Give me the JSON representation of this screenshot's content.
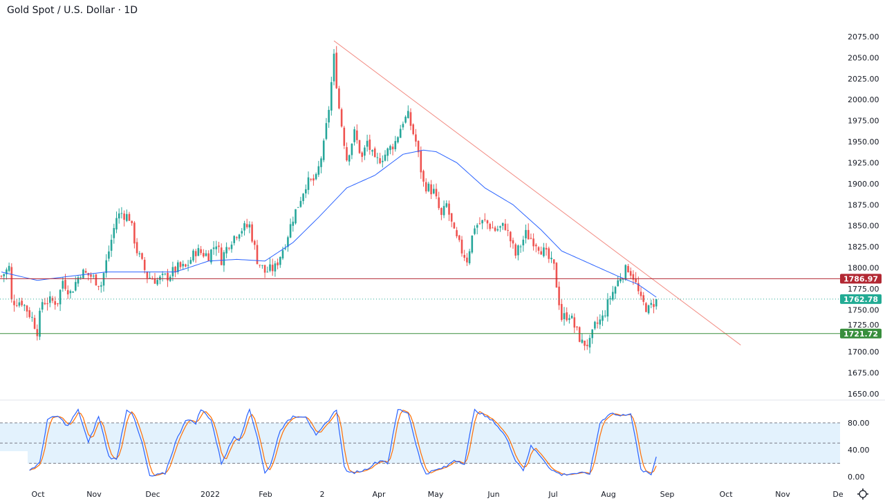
{
  "title": "Gold Spot / U.S. Dollar · 1D",
  "colors": {
    "up": "#26a69a",
    "down": "#ef5350",
    "ma": "#2962ff",
    "trend": "#f28b82",
    "resistance": "#b22833",
    "support": "#388e3c",
    "last": "#22ab94",
    "stochK": "#2962ff",
    "stochD": "#ff6d00",
    "band": "#e3f2fd"
  },
  "chart_data": [
    {
      "type": "candlestick",
      "title": "Gold Spot / U.S. Dollar · 1D",
      "ylim": [
        1640,
        2085
      ],
      "y_ticks": [
        "2075.00",
        "2050.00",
        "2025.00",
        "2000.00",
        "1975.00",
        "1950.00",
        "1925.00",
        "1900.00",
        "1875.00",
        "1850.00",
        "1825.00",
        "1800.00",
        "1775.00",
        "1750.00",
        "1725.00",
        "1700.00",
        "1675.00",
        "1650.00"
      ],
      "x_ticks": [
        "Oct",
        "Nov",
        "Dec",
        "2022",
        "Feb",
        "2",
        "Apr",
        "May",
        "Jun",
        "Jul",
        "Aug",
        "Sep",
        "Oct",
        "Nov",
        "De"
      ],
      "close_path_bar_price": [
        [
          0,
          1790
        ],
        [
          3,
          1800
        ],
        [
          4,
          1760
        ],
        [
          8,
          1760
        ],
        [
          12,
          1740
        ],
        [
          14,
          1725
        ],
        [
          16,
          1760
        ],
        [
          22,
          1760
        ],
        [
          24,
          1785
        ],
        [
          27,
          1770
        ],
        [
          31,
          1795
        ],
        [
          35,
          1790
        ],
        [
          39,
          1780
        ],
        [
          42,
          1820
        ],
        [
          45,
          1860
        ],
        [
          47,
          1865
        ],
        [
          50,
          1860
        ],
        [
          53,
          1820
        ],
        [
          57,
          1790
        ],
        [
          61,
          1785
        ],
        [
          65,
          1790
        ],
        [
          69,
          1800
        ],
        [
          72,
          1800
        ],
        [
          76,
          1820
        ],
        [
          81,
          1815
        ],
        [
          84,
          1830
        ],
        [
          86,
          1810
        ],
        [
          89,
          1830
        ],
        [
          93,
          1845
        ],
        [
          97,
          1850
        ],
        [
          100,
          1810
        ],
        [
          103,
          1795
        ],
        [
          107,
          1800
        ],
        [
          111,
          1830
        ],
        [
          114,
          1860
        ],
        [
          116,
          1875
        ],
        [
          119,
          1900
        ],
        [
          123,
          1905
        ],
        [
          126,
          1945
        ],
        [
          128,
          1990
        ],
        [
          130,
          2050
        ],
        [
          132,
          1990
        ],
        [
          135,
          1930
        ],
        [
          138,
          1960
        ],
        [
          141,
          1930
        ],
        [
          143,
          1950
        ],
        [
          146,
          1925
        ],
        [
          150,
          1935
        ],
        [
          154,
          1950
        ],
        [
          157,
          1975
        ],
        [
          159,
          1980
        ],
        [
          162,
          1950
        ],
        [
          165,
          1900
        ],
        [
          169,
          1890
        ],
        [
          172,
          1860
        ],
        [
          174,
          1875
        ],
        [
          177,
          1840
        ],
        [
          180,
          1820
        ],
        [
          182,
          1810
        ],
        [
          185,
          1850
        ],
        [
          189,
          1855
        ],
        [
          193,
          1845
        ],
        [
          197,
          1850
        ],
        [
          201,
          1815
        ],
        [
          205,
          1840
        ],
        [
          209,
          1830
        ],
        [
          213,
          1815
        ],
        [
          216,
          1800
        ],
        [
          219,
          1740
        ],
        [
          222,
          1745
        ],
        [
          224,
          1730
        ],
        [
          227,
          1710
        ],
        [
          230,
          1710
        ],
        [
          232,
          1730
        ],
        [
          235,
          1740
        ],
        [
          238,
          1765
        ],
        [
          242,
          1790
        ],
        [
          245,
          1800
        ],
        [
          247,
          1790
        ],
        [
          250,
          1760
        ],
        [
          253,
          1750
        ],
        [
          256,
          1762.78
        ]
      ],
      "ma50_path_bar_price": [
        [
          0,
          1795
        ],
        [
          14,
          1785
        ],
        [
          27,
          1790
        ],
        [
          41,
          1795
        ],
        [
          54,
          1795
        ],
        [
          68,
          1795
        ],
        [
          81,
          1808
        ],
        [
          92,
          1810
        ],
        [
          103,
          1808
        ],
        [
          114,
          1830
        ],
        [
          124,
          1860
        ],
        [
          135,
          1895
        ],
        [
          146,
          1910
        ],
        [
          157,
          1935
        ],
        [
          165,
          1940
        ],
        [
          170,
          1938
        ],
        [
          178,
          1925
        ],
        [
          189,
          1895
        ],
        [
          200,
          1875
        ],
        [
          211,
          1845
        ],
        [
          219,
          1820
        ],
        [
          230,
          1805
        ],
        [
          241,
          1790
        ],
        [
          249,
          1780
        ],
        [
          256,
          1765
        ]
      ],
      "trendline": [
        [
          130,
          2070
        ],
        [
          289,
          1708
        ]
      ],
      "horizontal_levels": [
        {
          "label": "1786.97",
          "value": 1786.97
        },
        {
          "label": "1721.72",
          "value": 1721.72
        }
      ],
      "last_price": {
        "label": "1762.78",
        "value": 1762.78
      }
    },
    {
      "type": "line",
      "title": "Stochastic",
      "ylim": [
        0,
        100
      ],
      "y_ticks": [
        "80.00",
        "40.00",
        "0.00"
      ],
      "levels": [
        80,
        50,
        20
      ],
      "k_path_bar_value": [
        [
          11,
          10
        ],
        [
          15,
          20
        ],
        [
          18,
          85
        ],
        [
          22,
          90
        ],
        [
          26,
          75
        ],
        [
          30,
          100
        ],
        [
          34,
          50
        ],
        [
          38,
          90
        ],
        [
          42,
          30
        ],
        [
          45,
          25
        ],
        [
          49,
          100
        ],
        [
          51,
          95
        ],
        [
          55,
          50
        ],
        [
          58,
          0
        ],
        [
          64,
          5
        ],
        [
          68,
          50
        ],
        [
          72,
          85
        ],
        [
          76,
          80
        ],
        [
          78,
          100
        ],
        [
          82,
          85
        ],
        [
          86,
          20
        ],
        [
          91,
          60
        ],
        [
          93,
          55
        ],
        [
          97,
          100
        ],
        [
          100,
          60
        ],
        [
          103,
          5
        ],
        [
          105,
          15
        ],
        [
          109,
          70
        ],
        [
          114,
          90
        ],
        [
          119,
          90
        ],
        [
          123,
          60
        ],
        [
          127,
          80
        ],
        [
          131,
          100
        ],
        [
          134,
          15
        ],
        [
          136,
          5
        ],
        [
          142,
          10
        ],
        [
          146,
          20
        ],
        [
          149,
          25
        ],
        [
          151,
          20
        ],
        [
          155,
          100
        ],
        [
          159,
          95
        ],
        [
          164,
          20
        ],
        [
          166,
          5
        ],
        [
          170,
          10
        ],
        [
          174,
          15
        ],
        [
          177,
          25
        ],
        [
          181,
          20
        ],
        [
          185,
          100
        ],
        [
          189,
          90
        ],
        [
          193,
          80
        ],
        [
          197,
          60
        ],
        [
          201,
          25
        ],
        [
          204,
          10
        ],
        [
          207,
          45
        ],
        [
          211,
          30
        ],
        [
          215,
          10
        ],
        [
          219,
          3
        ],
        [
          224,
          5
        ],
        [
          230,
          5
        ],
        [
          234,
          80
        ],
        [
          238,
          95
        ],
        [
          242,
          90
        ],
        [
          246,
          95
        ],
        [
          250,
          10
        ],
        [
          254,
          3
        ],
        [
          256,
          30
        ]
      ]
    }
  ]
}
